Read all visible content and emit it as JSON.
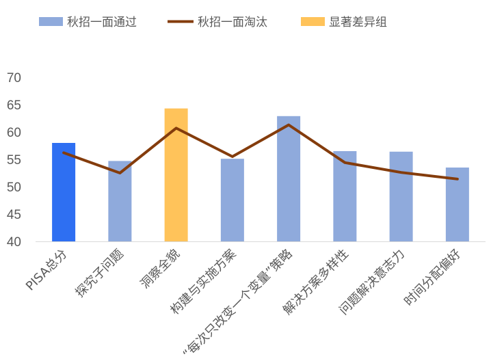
{
  "chart_data": {
    "type": "bar",
    "title": "",
    "xlabel": "",
    "ylabel": "",
    "ylim": [
      40,
      70
    ],
    "yticks": [
      40,
      45,
      50,
      55,
      60,
      65,
      70
    ],
    "grid": false,
    "legend_position": "top-left",
    "categories": [
      "PISA总分",
      "探究子问题",
      "洞察全貌",
      "构建与实施方案",
      "“每次只改变一个变量”策略",
      "解决方案多样性",
      "问题解决意志力",
      "时间分配偏好"
    ],
    "series": [
      {
        "name": "秋招一面通过",
        "type": "bar",
        "color": "#8faadc",
        "highlight_colors": [
          "#2e6ff2",
          null,
          "#ffc35a",
          null,
          null,
          null,
          null,
          null
        ],
        "values": [
          58,
          54.7,
          64.3,
          55.1,
          62.9,
          56.5,
          56.4,
          53.5
        ]
      },
      {
        "name": "秋招一面淘汰",
        "type": "line",
        "color": "#843c0c",
        "values": [
          56.2,
          52.5,
          60.7,
          55.5,
          61.3,
          54.4,
          52.6,
          51.4
        ]
      },
      {
        "name": "显著差异组",
        "type": "legend-only",
        "color": "#ffc35a"
      }
    ]
  }
}
